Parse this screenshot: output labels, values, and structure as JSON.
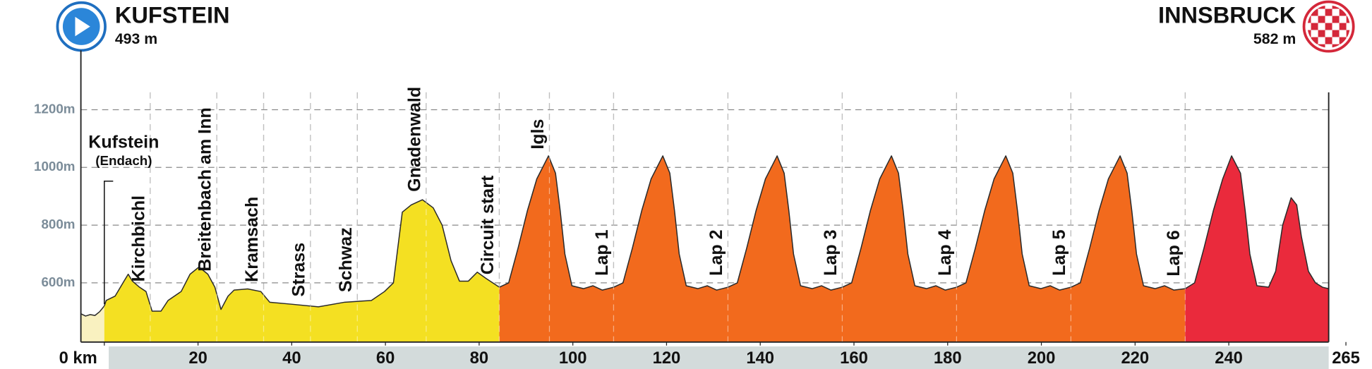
{
  "header": {
    "start_name": "KUFSTEIN",
    "start_altitude": "493 m",
    "finish_name": "INNSBRUCK",
    "finish_altitude": "582 m"
  },
  "chart_data": {
    "type": "area",
    "xlim": [
      -5,
      265
    ],
    "ylim": [
      395,
      1260
    ],
    "xticks": [
      {
        "value": 0,
        "label": "0 km"
      },
      20,
      40,
      60,
      80,
      100,
      120,
      140,
      160,
      180,
      200,
      220,
      240,
      265
    ],
    "yticks": [
      {
        "value": 600,
        "label": "600m"
      },
      {
        "value": 800,
        "label": "800m"
      },
      {
        "value": 1000,
        "label": "1000m"
      },
      {
        "value": 1200,
        "label": "1200m"
      }
    ],
    "grid": true,
    "start_label": {
      "name": "Kufstein",
      "note": "(Endach)"
    },
    "places": [
      {
        "name": "Kirchbichl",
        "km": 9.8
      },
      {
        "name": "Breitenbach am Inn",
        "km": 24
      },
      {
        "name": "Kramsach",
        "km": 34
      },
      {
        "name": "Strass",
        "km": 44
      },
      {
        "name": "Schwaz",
        "km": 54
      },
      {
        "name": "Gnadenwald",
        "km": 68.7
      },
      {
        "name": "Circuit start",
        "km": 84.3
      },
      {
        "name": "Igls",
        "km": 95
      },
      {
        "name": "Lap 1",
        "km": 108.7
      },
      {
        "name": "Lap 2",
        "km": 133.1
      },
      {
        "name": "Lap 3",
        "km": 157.5
      },
      {
        "name": "Lap 4",
        "km": 181.9
      },
      {
        "name": "Lap 5",
        "km": 206.3
      },
      {
        "name": "Lap 6",
        "km": 230.7
      }
    ],
    "series": [
      {
        "color": "#f9f1c0",
        "x": [
          -5,
          -4,
          -3,
          -2,
          -1,
          0
        ],
        "values": [
          493,
          485,
          490,
          487,
          500,
          520
        ]
      },
      {
        "color": "#f4e022",
        "x": [
          0,
          0.4,
          2.3,
          4.2,
          5.1,
          6.0,
          7.5,
          8.9,
          10.2,
          12.1,
          13.6,
          16.4,
          18.3,
          20.2,
          22.1,
          23.6,
          24.9,
          26.4,
          27.7,
          30.6,
          33.4,
          35.3,
          40.0,
          45.7,
          51.3,
          57.0,
          59.8,
          61.7,
          63.6,
          65.5,
          67.9,
          70.2,
          72.1,
          74.0,
          75.8,
          77.7,
          79.6,
          81.5,
          84.3
        ],
        "values": [
          520,
          539,
          554,
          606,
          630,
          606,
          585,
          570,
          502,
          502,
          539,
          570,
          630,
          655,
          630,
          585,
          508,
          554,
          575,
          579,
          570,
          533,
          526,
          517,
          533,
          539,
          570,
          600,
          845,
          870,
          888,
          860,
          800,
          677,
          606,
          606,
          637,
          615,
          585
        ]
      },
      {
        "color": "#f26a1d",
        "x": [
          84.3,
          86.3,
          88.3,
          90.3,
          92.3,
          94.8,
          96.3,
          97.3,
          98.3,
          99.8,
          102.3,
          104.3,
          106.3,
          108.7,
          110.7,
          112.7,
          114.7,
          116.7,
          119.2,
          120.7,
          121.7,
          122.7,
          124.2,
          126.7,
          128.7,
          130.7,
          133.1,
          135.1,
          137.1,
          139.1,
          141.1,
          143.6,
          145.1,
          146.1,
          147.1,
          148.6,
          151.1,
          153.1,
          155.1,
          157.5,
          159.5,
          161.5,
          163.5,
          165.5,
          168,
          169.5,
          170.5,
          171.5,
          173,
          175.5,
          177.5,
          179.5,
          181.9,
          183.9,
          185.9,
          187.9,
          189.9,
          192.4,
          193.9,
          194.9,
          195.9,
          197.4,
          199.9,
          201.9,
          203.9,
          206.3,
          208.3,
          210.3,
          212.3,
          214.3,
          216.8,
          218.3,
          219.3,
          220.3,
          221.8,
          224.3,
          226.3,
          228.3,
          230.7
        ],
        "values": [
          585,
          600,
          720,
          850,
          960,
          1040,
          980,
          850,
          700,
          590,
          580,
          590,
          575,
          585,
          600,
          720,
          850,
          960,
          1040,
          980,
          850,
          700,
          590,
          580,
          590,
          575,
          585,
          600,
          720,
          850,
          960,
          1040,
          980,
          850,
          700,
          590,
          580,
          590,
          575,
          585,
          600,
          720,
          850,
          960,
          1040,
          980,
          850,
          700,
          590,
          580,
          590,
          575,
          585,
          600,
          720,
          850,
          960,
          1040,
          980,
          850,
          700,
          590,
          580,
          590,
          575,
          585,
          600,
          720,
          850,
          960,
          1040,
          980,
          850,
          700,
          590,
          580,
          590,
          575,
          580
        ]
      },
      {
        "color": "#ea2a3c",
        "x": [
          230.7,
          232.7,
          234.7,
          236.7,
          238.7,
          240.6,
          242.5,
          243.5,
          244.5,
          246,
          248.5,
          250,
          251.5,
          253.3,
          254.5,
          255.5,
          257,
          258.5,
          260,
          261.3
        ],
        "values": [
          580,
          600,
          720,
          850,
          960,
          1040,
          980,
          850,
          700,
          590,
          585,
          640,
          800,
          895,
          870,
          760,
          640,
          600,
          585,
          580
        ]
      }
    ]
  }
}
